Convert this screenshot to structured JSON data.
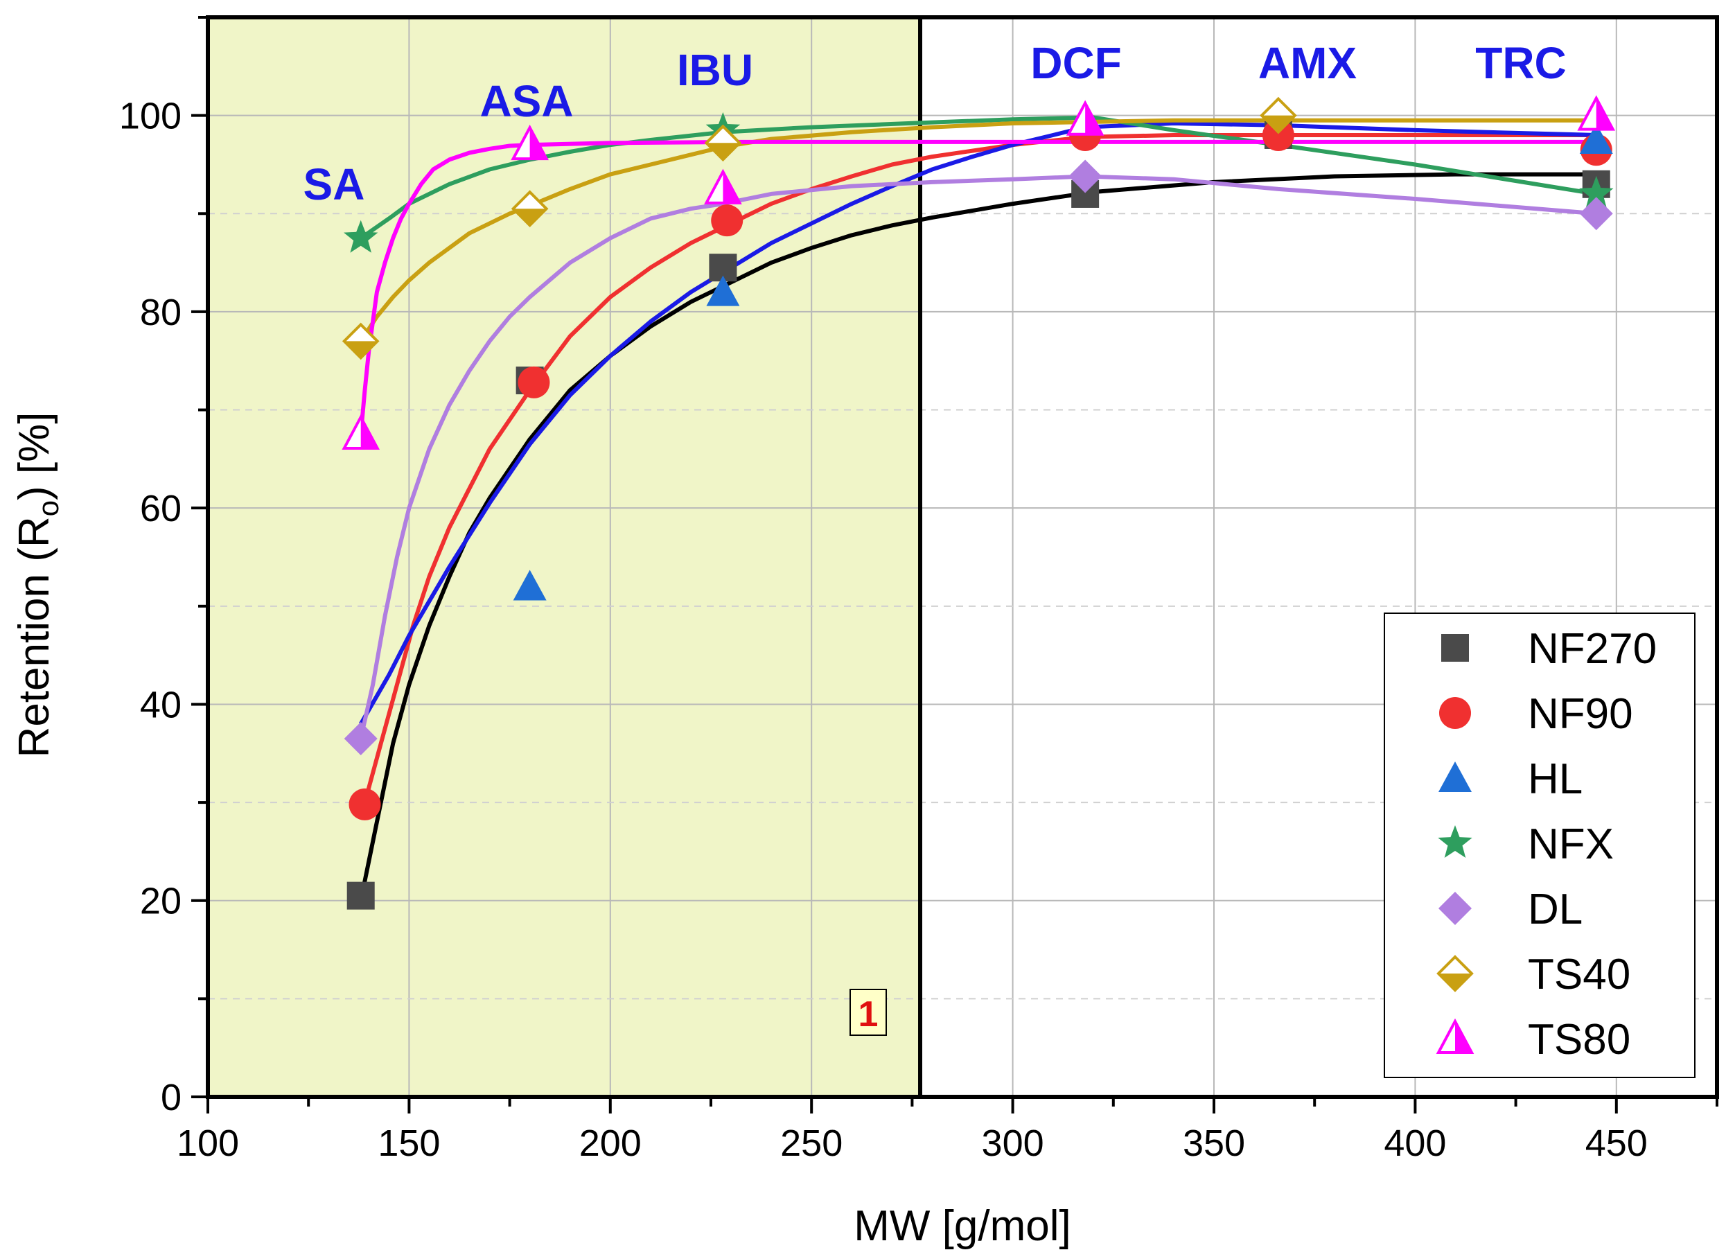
{
  "chart_data": {
    "type": "scatter",
    "xlabel": "MW [g/mol]",
    "ylabel_main": "Retention (R",
    "ylabel_sub": "o",
    "ylabel_end": ") [%]",
    "xlim": [
      100,
      475
    ],
    "ylim": [
      0,
      110
    ],
    "x_ticks": [
      100,
      150,
      200,
      250,
      300,
      350,
      400,
      450
    ],
    "y_ticks": [
      0,
      20,
      40,
      60,
      80,
      100
    ],
    "grid": true,
    "legend_position": "bottom-right",
    "shaded_region": {
      "x_from": 100,
      "x_to": 277,
      "color": "#f0f5c8",
      "label": "1"
    },
    "colors": {
      "NF270": "#4a4a4a",
      "NF90": "#f03030",
      "HL": "#1f6fd6",
      "NFX": "#2e9e5e",
      "DL": "#b07ee0",
      "TS40": "#c9a012",
      "TS80": "#ff00ff"
    },
    "compounds": [
      {
        "name": "SA",
        "mw": 138
      },
      {
        "name": "ASA",
        "mw": 180
      },
      {
        "name": "IBU",
        "mw": 206
      },
      {
        "name": "DCF",
        "mw": 296
      },
      {
        "name": "AMX",
        "mw": 365
      },
      {
        "name": "TRC",
        "mw": 444
      }
    ],
    "series": [
      {
        "name": "NF270",
        "marker": "square",
        "x": [
          138,
          180,
          228,
          318,
          366,
          445
        ],
        "y": [
          20.5,
          73,
          84.5,
          92,
          98,
          93
        ],
        "fit_x": [
          138,
          142,
          146,
          150,
          155,
          160,
          165,
          170,
          175,
          180,
          190,
          200,
          210,
          220,
          230,
          240,
          250,
          260,
          270,
          280,
          300,
          320,
          350,
          380,
          410,
          445
        ],
        "fit_y": [
          20,
          28,
          36,
          42,
          48,
          53,
          57.5,
          61,
          64,
          67,
          72,
          75.5,
          78.5,
          81,
          83,
          85,
          86.5,
          87.8,
          88.8,
          89.6,
          91,
          92.2,
          93.2,
          93.8,
          94,
          94
        ]
      },
      {
        "name": "NF90",
        "marker": "circle",
        "x": [
          139,
          181,
          229,
          318,
          366,
          445
        ],
        "y": [
          29.8,
          72.8,
          89.3,
          98,
          98,
          96.5
        ],
        "fit_x": [
          139,
          143,
          147,
          151,
          155,
          160,
          165,
          170,
          175,
          180,
          190,
          200,
          210,
          220,
          230,
          240,
          250,
          260,
          270,
          280,
          300,
          318,
          340,
          366,
          445
        ],
        "fit_y": [
          30,
          36,
          42,
          48,
          53,
          58,
          62,
          66,
          69,
          72,
          77.5,
          81.5,
          84.5,
          87,
          89,
          91,
          92.5,
          93.8,
          95,
          95.8,
          97,
          97.8,
          98,
          98,
          98
        ]
      },
      {
        "name": "HL",
        "marker": "triangle",
        "x": [
          180,
          228,
          445
        ],
        "y": [
          52,
          82,
          97.5
        ],
        "fit_x": [
          138,
          145,
          150,
          160,
          170,
          180,
          190,
          200,
          210,
          220,
          230,
          240,
          250,
          260,
          270,
          280,
          290,
          300,
          310,
          318,
          340,
          366,
          400,
          445
        ],
        "fit_y": [
          38,
          43,
          47,
          54,
          60.5,
          66.5,
          71.5,
          75.5,
          79,
          82,
          84.5,
          87,
          89,
          91,
          92.8,
          94.5,
          95.8,
          97,
          98,
          98.8,
          99.2,
          99,
          98.5,
          98
        ]
      },
      {
        "name": "NFX",
        "marker": "star",
        "x": [
          138,
          228,
          445
        ],
        "y": [
          87.5,
          98.5,
          92
        ],
        "fit_x": [
          138,
          145,
          150,
          160,
          170,
          180,
          190,
          200,
          210,
          228,
          250,
          280,
          300,
          320,
          340,
          366,
          400,
          445
        ],
        "fit_y": [
          87.5,
          89.5,
          91,
          93,
          94.5,
          95.5,
          96.3,
          97,
          97.5,
          98.3,
          98.8,
          99.3,
          99.6,
          99.8,
          98.5,
          97,
          95,
          92
        ]
      },
      {
        "name": "DL",
        "marker": "diamond",
        "x": [
          138,
          318,
          445
        ],
        "y": [
          36.5,
          93.8,
          90
        ],
        "fit_x": [
          138,
          141,
          144,
          147,
          150,
          155,
          160,
          165,
          170,
          175,
          180,
          190,
          200,
          210,
          220,
          228,
          240,
          260,
          280,
          300,
          318,
          340,
          366,
          400,
          445
        ],
        "fit_y": [
          36.5,
          42,
          49,
          55,
          60,
          66,
          70.5,
          74,
          77,
          79.5,
          81.5,
          85,
          87.5,
          89.5,
          90.5,
          91,
          92,
          92.8,
          93.2,
          93.5,
          93.8,
          93.5,
          92.5,
          91.5,
          90
        ]
      },
      {
        "name": "TS40",
        "marker": "open-diamond",
        "x": [
          138,
          180,
          228,
          366
        ],
        "y": [
          77,
          90.5,
          97.2,
          100
        ],
        "fit_x": [
          138,
          142,
          146,
          150,
          155,
          160,
          165,
          170,
          175,
          180,
          190,
          200,
          210,
          220,
          228,
          240,
          260,
          280,
          300,
          340,
          366,
          400,
          445
        ],
        "fit_y": [
          77,
          79.5,
          81.5,
          83.2,
          85,
          86.5,
          88,
          89,
          90,
          90.8,
          92.5,
          94,
          95,
          96,
          96.8,
          97.6,
          98.3,
          98.8,
          99.2,
          99.5,
          99.5,
          99.5,
          99.5
        ]
      },
      {
        "name": "TS80",
        "marker": "half-triangle",
        "x": [
          138,
          180,
          228,
          318,
          445
        ],
        "y": [
          67.5,
          97,
          92.5,
          99.5,
          100
        ],
        "fit_x": [
          138,
          139,
          140,
          141,
          142,
          144,
          146,
          148,
          150,
          153,
          156,
          160,
          165,
          170,
          175,
          180,
          200,
          230,
          280,
          318,
          400,
          445
        ],
        "fit_y": [
          67.5,
          72,
          76,
          79,
          82,
          85,
          87.5,
          89.5,
          91,
          93,
          94.5,
          95.5,
          96.2,
          96.6,
          96.9,
          97,
          97.2,
          97.3,
          97.3,
          97.3,
          97.3,
          97.3
        ]
      }
    ]
  }
}
